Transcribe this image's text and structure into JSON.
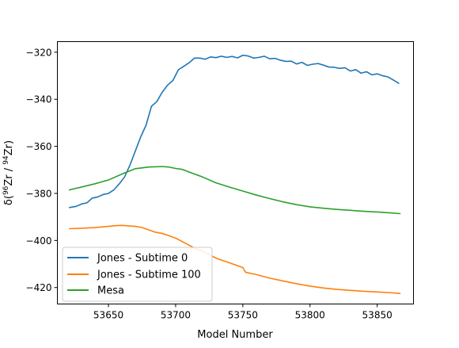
{
  "chart_data": {
    "type": "line",
    "title": "",
    "xlabel": "Model Number",
    "ylabel_parts": {
      "delta": "δ(",
      "sup1": "96",
      "mid": "Zr / ",
      "sup2": "94",
      "end": "Zr)"
    },
    "xlim": [
      53612,
      53877
    ],
    "ylim": [
      -427,
      -315.5
    ],
    "xticks": [
      53650,
      53700,
      53750,
      53800,
      53850
    ],
    "xtick_labels": [
      "53650",
      "53700",
      "53750",
      "53800",
      "53850"
    ],
    "yticks": [
      -320,
      -340,
      -360,
      -380,
      -400,
      -420
    ],
    "ytick_labels": [
      "−320",
      "−340",
      "−360",
      "−380",
      "−400",
      "−420"
    ],
    "grid": false,
    "legend_position": "lower-left",
    "series": [
      {
        "name": "Jones - Subtime 0",
        "color": "#1f77b4",
        "x": [
          53621,
          53626,
          53630,
          53634,
          53638,
          53642,
          53646,
          53650,
          53654,
          53658,
          53662,
          53666,
          53670,
          53674,
          53678,
          53682,
          53686,
          53690,
          53694,
          53698,
          53702,
          53706,
          53710,
          53714,
          53718,
          53722,
          53726,
          53730,
          53734,
          53738,
          53742,
          53746,
          53750,
          53754,
          53758,
          53762,
          53766,
          53770,
          53774,
          53778,
          53782,
          53786,
          53790,
          53794,
          53798,
          53802,
          53806,
          53810,
          53814,
          53818,
          53822,
          53826,
          53830,
          53834,
          53838,
          53842,
          53846,
          53850,
          53854,
          53858,
          53862,
          53866
        ],
        "y": [
          -386,
          -385.5,
          -384.5,
          -384,
          -382,
          -381.5,
          -380.5,
          -380,
          -378.5,
          -376,
          -373,
          -368,
          -362,
          -356,
          -351,
          -343,
          -341,
          -337,
          -334,
          -332,
          -327.5,
          -326,
          -324.5,
          -322.5,
          -322.5,
          -323,
          -322,
          -322.3,
          -321.7,
          -322.2,
          -321.8,
          -322.4,
          -321.3,
          -321.6,
          -322.5,
          -322.2,
          -321.7,
          -322.8,
          -322.6,
          -323.4,
          -323.9,
          -323.8,
          -325,
          -324.3,
          -325.6,
          -325.1,
          -324.8,
          -325.5,
          -326.3,
          -326.4,
          -326.9,
          -326.6,
          -328,
          -327.4,
          -328.9,
          -328.3,
          -329.6,
          -329.2,
          -330,
          -330.5,
          -331.8,
          -333.2
        ]
      },
      {
        "name": "Jones - Subtime 100",
        "color": "#ff7f0e",
        "x": [
          53621,
          53630,
          53640,
          53650,
          53655,
          53660,
          53665,
          53670,
          53675,
          53680,
          53685,
          53690,
          53695,
          53700,
          53705,
          53710,
          53715,
          53720,
          53725,
          53730,
          53735,
          53740,
          53745,
          53750,
          53752,
          53760,
          53770,
          53780,
          53790,
          53800,
          53810,
          53820,
          53830,
          53840,
          53850,
          53860,
          53867
        ],
        "y": [
          -395,
          -394.8,
          -394.5,
          -394,
          -393.7,
          -393.6,
          -393.8,
          -394,
          -394.5,
          -395.5,
          -396.5,
          -397,
          -398,
          -399,
          -400.5,
          -402,
          -403.5,
          -404.5,
          -406,
          -407.5,
          -408.5,
          -409.5,
          -410.5,
          -411.5,
          -413.5,
          -414.5,
          -416,
          -417.2,
          -418.4,
          -419.4,
          -420.2,
          -420.8,
          -421.2,
          -421.6,
          -421.9,
          -422.2,
          -422.5
        ]
      },
      {
        "name": "Mesa",
        "color": "#2ca02c",
        "x": [
          53621,
          53630,
          53640,
          53650,
          53660,
          53670,
          53680,
          53690,
          53695,
          53700,
          53705,
          53710,
          53720,
          53730,
          53740,
          53750,
          53760,
          53770,
          53780,
          53790,
          53800,
          53810,
          53820,
          53830,
          53840,
          53850,
          53860,
          53867
        ],
        "y": [
          -378.5,
          -377.3,
          -375.9,
          -374.3,
          -371.8,
          -369.5,
          -368.8,
          -368.6,
          -368.8,
          -369.4,
          -369.8,
          -370.9,
          -373,
          -375.5,
          -377.3,
          -379,
          -380.7,
          -382.2,
          -383.6,
          -384.8,
          -385.7,
          -386.3,
          -386.8,
          -387.2,
          -387.6,
          -387.9,
          -388.3,
          -388.6
        ]
      }
    ]
  }
}
